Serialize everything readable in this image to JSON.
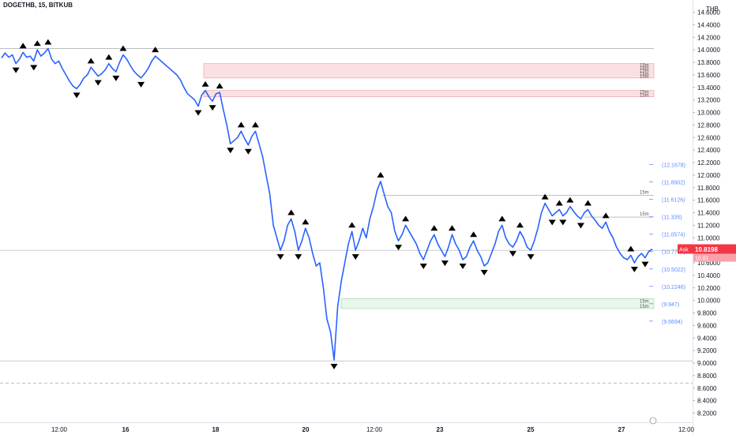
{
  "header": {
    "symbol": "DOGETHB",
    "interval": "15",
    "exchange": "BITKUB",
    "title": "DOGETHB, 15, BITKUB"
  },
  "price_axis": {
    "currency": "THB"
  },
  "quote": {
    "ask_label": "Ask",
    "ask_price": "10.8198",
    "last_visible": "10.81"
  },
  "colors": {
    "line": "#2962ff",
    "marker": "#000000",
    "zone_red": "#f7c6cc",
    "zone_green": "#d7f0dd",
    "axis_text": "#131722",
    "level_text": "#5b8cff",
    "ask_badge": "#f23645"
  },
  "chart_data": {
    "type": "line",
    "title": "",
    "xlabel": "",
    "ylabel": "",
    "ylim": [
      8.1,
      14.75
    ],
    "y_ticks": [
      "14.6000",
      "14.4000",
      "14.2000",
      "14.0000",
      "13.8000",
      "13.6000",
      "13.4000",
      "13.2000",
      "13.0000",
      "12.8000",
      "12.6000",
      "12.4000",
      "12.2000",
      "12.0000",
      "11.8000",
      "11.6000",
      "11.4000",
      "11.2000",
      "11.0000",
      "10.8000",
      "10.6000",
      "10.4000",
      "10.2000",
      "10.0000",
      "9.8000",
      "9.6000",
      "9.4000",
      "9.2000",
      "9.0000",
      "8.8000",
      "8.6000",
      "8.4000",
      "8.2000"
    ],
    "x_ticks": [
      "12:00",
      "16",
      "18",
      "20",
      "12:00",
      "23",
      "25",
      "27",
      "12:00"
    ],
    "series": [
      {
        "values": [
          13.87,
          13.95,
          13.88,
          13.92,
          13.78,
          13.85,
          13.96,
          13.88,
          13.9,
          13.82,
          14.0,
          13.9,
          13.95,
          14.02,
          13.85,
          13.78,
          13.82,
          13.7,
          13.6,
          13.5,
          13.42,
          13.38,
          13.45,
          13.55,
          13.6,
          13.72,
          13.65,
          13.58,
          13.62,
          13.68,
          13.78,
          13.7,
          13.65,
          13.8,
          13.92,
          13.85,
          13.75,
          13.66,
          13.6,
          13.55,
          13.62,
          13.7,
          13.82,
          13.9,
          13.85,
          13.8,
          13.75,
          13.7,
          13.65,
          13.6,
          13.52,
          13.4,
          13.3,
          13.25,
          13.2,
          13.1,
          13.28,
          13.35,
          13.25,
          13.18,
          13.3,
          13.32,
          13.05,
          12.8,
          12.5,
          12.55,
          12.6,
          12.7,
          12.58,
          12.48,
          12.62,
          12.7,
          12.5,
          12.3,
          12.0,
          11.7,
          11.2,
          11.0,
          10.8,
          10.95,
          11.2,
          11.3,
          11.1,
          10.8,
          10.95,
          11.15,
          11.0,
          10.75,
          10.55,
          10.6,
          10.2,
          9.7,
          9.5,
          9.05,
          9.9,
          10.3,
          10.6,
          10.9,
          11.1,
          10.8,
          10.95,
          11.15,
          11.0,
          11.3,
          11.5,
          11.75,
          11.9,
          11.7,
          11.5,
          11.4,
          11.1,
          10.95,
          11.05,
          11.2,
          11.1,
          11.0,
          10.9,
          10.75,
          10.65,
          10.8,
          10.95,
          11.05,
          10.9,
          10.8,
          10.7,
          10.85,
          11.05,
          10.9,
          10.8,
          10.65,
          10.7,
          10.85,
          10.95,
          10.8,
          10.7,
          10.55,
          10.6,
          10.75,
          10.9,
          11.1,
          11.2,
          11.0,
          10.9,
          10.85,
          10.95,
          11.1,
          11.0,
          10.85,
          10.8,
          10.95,
          11.15,
          11.4,
          11.55,
          11.45,
          11.35,
          11.4,
          11.45,
          11.35,
          11.4,
          11.5,
          11.42,
          11.35,
          11.3,
          11.4,
          11.45,
          11.35,
          11.28,
          11.2,
          11.15,
          11.25,
          11.1,
          11.0,
          10.85,
          10.75,
          10.68,
          10.65,
          10.72,
          10.6,
          10.7,
          10.75,
          10.68,
          10.78,
          10.82
        ]
      }
    ],
    "levels": [
      {
        "value": "12.1678",
        "label": "(12.1678)"
      },
      {
        "value": "11.8902",
        "label": "(11.8902)"
      },
      {
        "value": "11.6126",
        "label": "(11.6126)"
      },
      {
        "value": "11.335",
        "label": "(11.335)"
      },
      {
        "value": "11.0574",
        "label": "(11.0574)"
      },
      {
        "value": "10.7798",
        "label": "(10.7798)"
      },
      {
        "value": "10.5022",
        "label": "(10.5022)"
      },
      {
        "value": "10.2246",
        "label": "(10.2246)"
      },
      {
        "value": "9.947",
        "label": "(9.947)"
      },
      {
        "value": "9.6694",
        "label": "(9.6694)"
      }
    ],
    "zones": [
      {
        "kind": "red",
        "from": 13.55,
        "to": 13.78,
        "tf_labels": [
          "15m",
          "15m",
          "15m",
          "15m",
          "15m"
        ]
      },
      {
        "kind": "red",
        "from": 13.25,
        "to": 13.35,
        "tf_labels": [
          "15m",
          "15m"
        ]
      },
      {
        "kind": "green",
        "from": 9.87,
        "to": 10.03,
        "tf_labels": [
          "15m",
          "15m"
        ]
      }
    ],
    "ref_lines": [
      {
        "value": 14.02,
        "style": "solid"
      },
      {
        "value": 11.68,
        "style": "solid",
        "tf_label": "15m"
      },
      {
        "value": 11.33,
        "style": "solid",
        "tf_label": "15m"
      },
      {
        "value": 10.8,
        "style": "solid"
      },
      {
        "value": 9.03,
        "style": "solid"
      },
      {
        "value": 8.68,
        "style": "dashed"
      }
    ],
    "grid": false,
    "legend": "none"
  }
}
